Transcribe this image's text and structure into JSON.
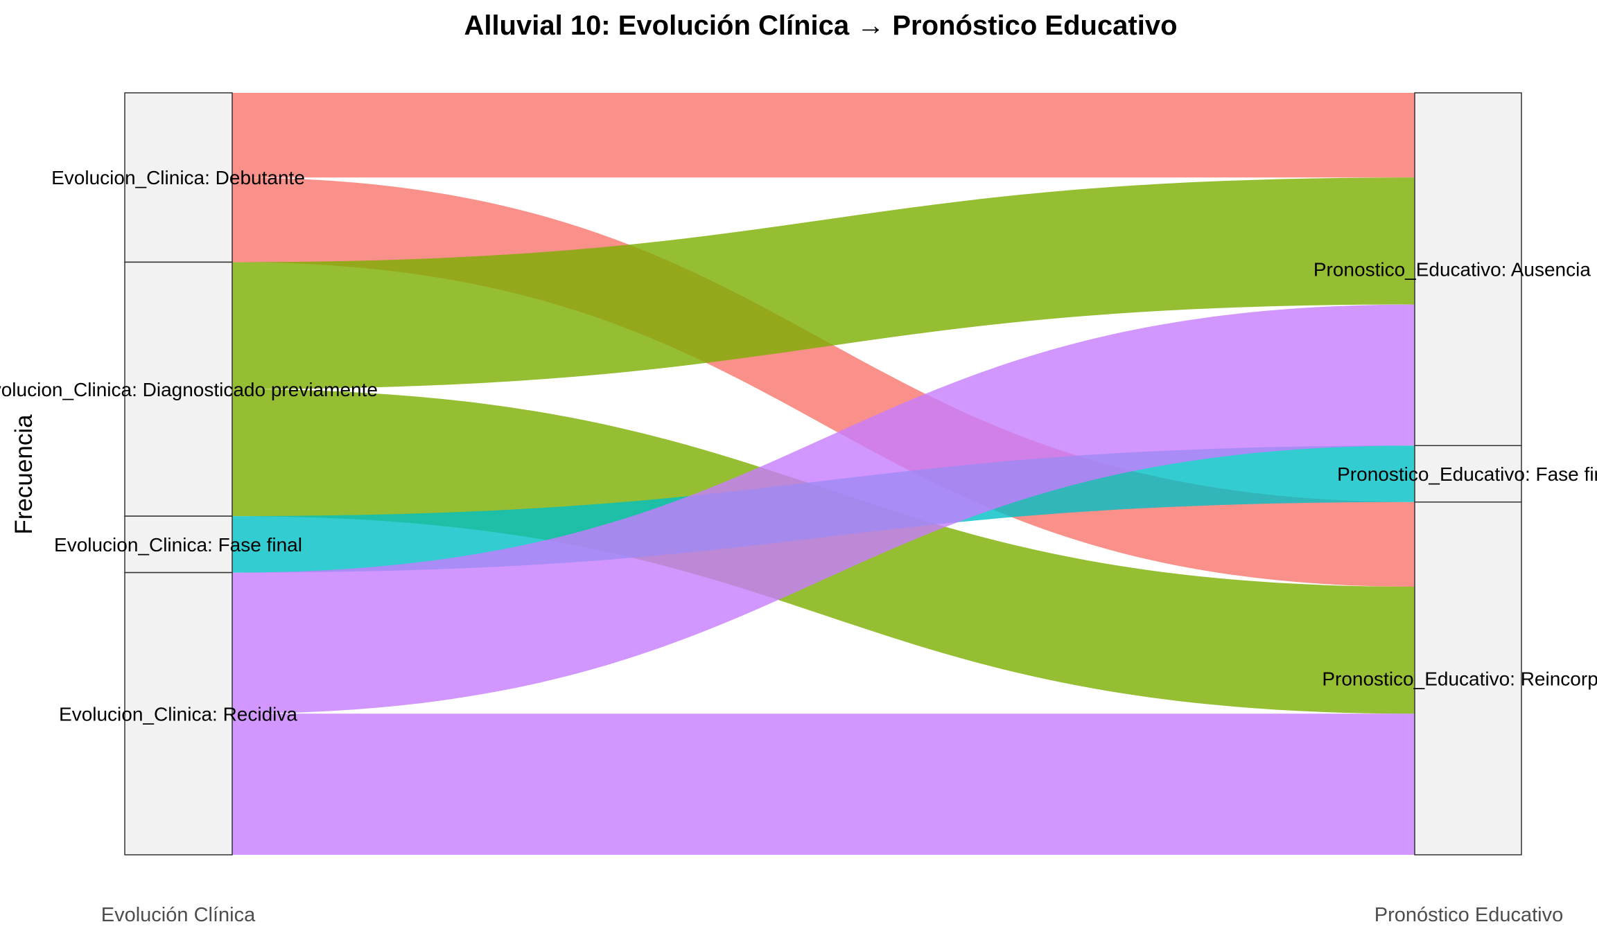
{
  "chart_data": {
    "type": "alluvial",
    "title": "Alluvial 10: Evolución Clínica → Pronóstico Educativo",
    "ylabel": "Frecuencia",
    "axes": [
      "Evolución Clínica",
      "Pronóstico Educativo"
    ],
    "colors": {
      "Debutante": "#F8766D",
      "Diagnosticado previamente": "#7CAE00",
      "Fase final": "#00BFC4",
      "Recidiva": "#C77CFF",
      "stratum_fill": "#F2F2F2",
      "stratum_stroke": "#333333"
    },
    "strata": {
      "left": [
        {
          "name": "Debutante",
          "label": "Evolucion_Clinica: Debutante",
          "value": 6
        },
        {
          "name": "Diagnosticado previamente",
          "label": "Evolucion_Clinica: Diagnosticado previamente",
          "value": 9
        },
        {
          "name": "Fase final",
          "label": "Evolucion_Clinica: Fase final",
          "value": 2
        },
        {
          "name": "Recidiva",
          "label": "Evolucion_Clinica: Recidiva",
          "value": 10
        }
      ],
      "right": [
        {
          "name": "Ausencia",
          "label": "Pronostico_Educativo: Ausencia pro",
          "value": 12.5
        },
        {
          "name": "Fase final",
          "label": "Pronostico_Educativo: Fase fir",
          "value": 2
        },
        {
          "name": "Reincorporacion",
          "label": "Pronostico_Educativo: Reincorpor",
          "value": 12.5
        }
      ]
    },
    "flows": [
      {
        "from": "Debutante",
        "to": "Ausencia",
        "value": 3,
        "color_key": "Debutante"
      },
      {
        "from": "Debutante",
        "to": "Reincorporacion",
        "value": 3,
        "color_key": "Debutante"
      },
      {
        "from": "Diagnosticado previamente",
        "to": "Ausencia",
        "value": 4.5,
        "color_key": "Diagnosticado previamente"
      },
      {
        "from": "Diagnosticado previamente",
        "to": "Reincorporacion",
        "value": 4.5,
        "color_key": "Diagnosticado previamente"
      },
      {
        "from": "Fase final",
        "to": "Fase final",
        "value": 2,
        "color_key": "Fase final"
      },
      {
        "from": "Recidiva",
        "to": "Ausencia",
        "value": 5,
        "color_key": "Recidiva"
      },
      {
        "from": "Recidiva",
        "to": "Reincorporacion",
        "value": 5,
        "color_key": "Recidiva"
      }
    ]
  }
}
